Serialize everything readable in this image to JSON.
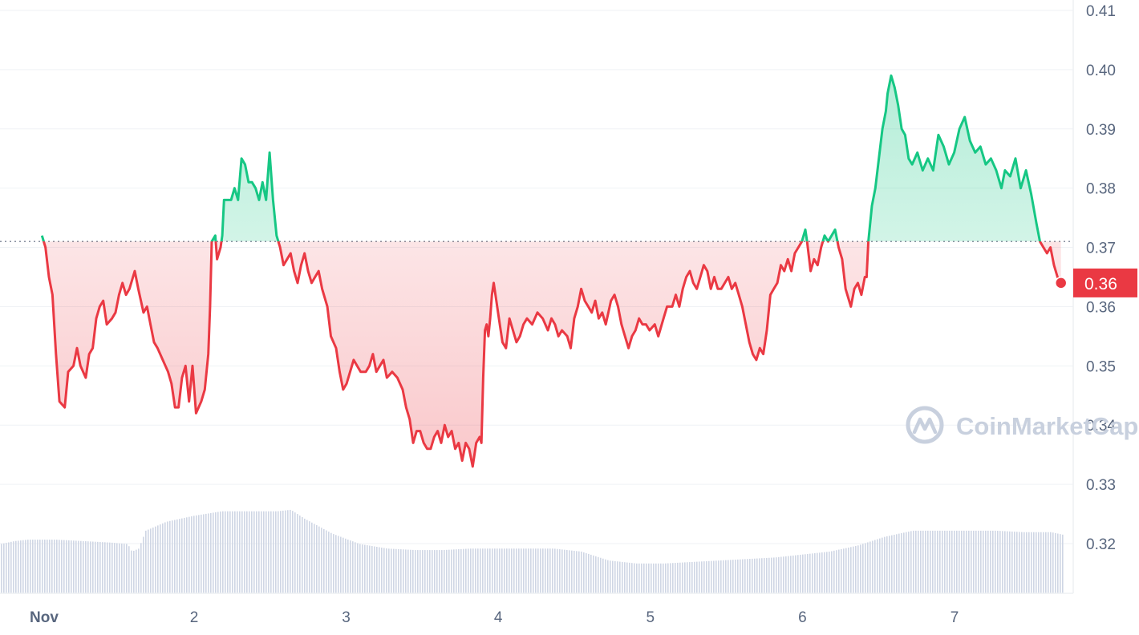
{
  "chart_data": {
    "type": "line",
    "title": "",
    "xlabel": "",
    "ylabel": "",
    "ylim": [
      0.311,
      0.412
    ],
    "xlim": [
      1.0,
      7.75
    ],
    "baseline": 0.371,
    "y_ticks": [
      "0.41",
      "0.40",
      "0.39",
      "0.38",
      "0.37",
      "0.36",
      "0.35",
      "0.34",
      "0.33",
      "0.32"
    ],
    "y_tick_values": [
      0.41,
      0.4,
      0.39,
      0.38,
      0.37,
      0.36,
      0.35,
      0.34,
      0.33,
      0.32
    ],
    "x_ticks": [
      {
        "label": "Nov",
        "value": 1.15,
        "bold": true
      },
      {
        "label": "2",
        "value": 2.0,
        "bold": false
      },
      {
        "label": "3",
        "value": 3.0,
        "bold": false
      },
      {
        "label": "4",
        "value": 4.0,
        "bold": false
      },
      {
        "label": "5",
        "value": 5.0,
        "bold": false
      },
      {
        "label": "6",
        "value": 6.0,
        "bold": false
      },
      {
        "label": "7",
        "value": 7.0,
        "bold": false
      }
    ],
    "grid": true,
    "current_price_label": "0.36",
    "up_color": "#16c784",
    "down_color": "#ea3943",
    "volume_color": "#cfd6e4",
    "price_series": [
      [
        1.0,
        0.372
      ],
      [
        1.02,
        0.37
      ],
      [
        1.04,
        0.365
      ],
      [
        1.06,
        0.362
      ],
      [
        1.08,
        0.352
      ],
      [
        1.1,
        0.344
      ],
      [
        1.13,
        0.343
      ],
      [
        1.15,
        0.349
      ],
      [
        1.18,
        0.35
      ],
      [
        1.2,
        0.353
      ],
      [
        1.22,
        0.35
      ],
      [
        1.25,
        0.348
      ],
      [
        1.27,
        0.352
      ],
      [
        1.29,
        0.353
      ],
      [
        1.31,
        0.358
      ],
      [
        1.33,
        0.36
      ],
      [
        1.35,
        0.361
      ],
      [
        1.37,
        0.357
      ],
      [
        1.4,
        0.358
      ],
      [
        1.42,
        0.359
      ],
      [
        1.44,
        0.362
      ],
      [
        1.46,
        0.364
      ],
      [
        1.48,
        0.362
      ],
      [
        1.5,
        0.363
      ],
      [
        1.53,
        0.366
      ],
      [
        1.55,
        0.363
      ],
      [
        1.58,
        0.359
      ],
      [
        1.6,
        0.36
      ],
      [
        1.62,
        0.357
      ],
      [
        1.64,
        0.354
      ],
      [
        1.66,
        0.353
      ],
      [
        1.69,
        0.351
      ],
      [
        1.72,
        0.349
      ],
      [
        1.74,
        0.347
      ],
      [
        1.76,
        0.343
      ],
      [
        1.78,
        0.343
      ],
      [
        1.8,
        0.348
      ],
      [
        1.82,
        0.35
      ],
      [
        1.84,
        0.344
      ],
      [
        1.86,
        0.35
      ],
      [
        1.88,
        0.342
      ],
      [
        1.91,
        0.344
      ],
      [
        1.93,
        0.346
      ],
      [
        1.95,
        0.352
      ],
      [
        1.96,
        0.36
      ],
      [
        1.97,
        0.371
      ],
      [
        1.99,
        0.372
      ],
      [
        2.0,
        0.368
      ],
      [
        2.02,
        0.37
      ],
      [
        2.03,
        0.372
      ],
      [
        2.04,
        0.378
      ],
      [
        2.06,
        0.378
      ],
      [
        2.08,
        0.378
      ],
      [
        2.1,
        0.38
      ],
      [
        2.12,
        0.378
      ],
      [
        2.14,
        0.385
      ],
      [
        2.16,
        0.384
      ],
      [
        2.18,
        0.381
      ],
      [
        2.2,
        0.381
      ],
      [
        2.22,
        0.38
      ],
      [
        2.24,
        0.378
      ],
      [
        2.26,
        0.381
      ],
      [
        2.28,
        0.378
      ],
      [
        2.3,
        0.386
      ],
      [
        2.32,
        0.378
      ],
      [
        2.34,
        0.372
      ],
      [
        2.36,
        0.37
      ],
      [
        2.38,
        0.367
      ],
      [
        2.4,
        0.368
      ],
      [
        2.42,
        0.369
      ],
      [
        2.44,
        0.366
      ],
      [
        2.46,
        0.364
      ],
      [
        2.48,
        0.367
      ],
      [
        2.5,
        0.369
      ],
      [
        2.52,
        0.366
      ],
      [
        2.54,
        0.364
      ],
      [
        2.56,
        0.365
      ],
      [
        2.58,
        0.366
      ],
      [
        2.6,
        0.363
      ],
      [
        2.63,
        0.36
      ],
      [
        2.65,
        0.355
      ],
      [
        2.68,
        0.353
      ],
      [
        2.7,
        0.349
      ],
      [
        2.72,
        0.346
      ],
      [
        2.74,
        0.347
      ],
      [
        2.76,
        0.349
      ],
      [
        2.78,
        0.351
      ],
      [
        2.8,
        0.35
      ],
      [
        2.82,
        0.349
      ],
      [
        2.85,
        0.349
      ],
      [
        2.87,
        0.35
      ],
      [
        2.89,
        0.352
      ],
      [
        2.91,
        0.349
      ],
      [
        2.93,
        0.35
      ],
      [
        2.95,
        0.351
      ],
      [
        2.97,
        0.348
      ],
      [
        3.0,
        0.349
      ],
      [
        3.03,
        0.348
      ],
      [
        3.06,
        0.346
      ],
      [
        3.08,
        0.343
      ],
      [
        3.1,
        0.341
      ],
      [
        3.12,
        0.337
      ],
      [
        3.14,
        0.339
      ],
      [
        3.16,
        0.339
      ],
      [
        3.18,
        0.337
      ],
      [
        3.2,
        0.336
      ],
      [
        3.22,
        0.336
      ],
      [
        3.24,
        0.338
      ],
      [
        3.26,
        0.339
      ],
      [
        3.28,
        0.337
      ],
      [
        3.3,
        0.34
      ],
      [
        3.32,
        0.338
      ],
      [
        3.34,
        0.339
      ],
      [
        3.36,
        0.336
      ],
      [
        3.38,
        0.337
      ],
      [
        3.4,
        0.334
      ],
      [
        3.42,
        0.337
      ],
      [
        3.44,
        0.336
      ],
      [
        3.46,
        0.333
      ],
      [
        3.48,
        0.337
      ],
      [
        3.5,
        0.338
      ],
      [
        3.51,
        0.337
      ],
      [
        3.52,
        0.348
      ],
      [
        3.53,
        0.356
      ],
      [
        3.54,
        0.357
      ],
      [
        3.55,
        0.355
      ],
      [
        3.56,
        0.358
      ],
      [
        3.57,
        0.362
      ],
      [
        3.58,
        0.364
      ],
      [
        3.59,
        0.362
      ],
      [
        3.61,
        0.358
      ],
      [
        3.63,
        0.354
      ],
      [
        3.65,
        0.353
      ],
      [
        3.67,
        0.358
      ],
      [
        3.69,
        0.356
      ],
      [
        3.71,
        0.354
      ],
      [
        3.73,
        0.355
      ],
      [
        3.75,
        0.357
      ],
      [
        3.77,
        0.358
      ],
      [
        3.8,
        0.357
      ],
      [
        3.83,
        0.359
      ],
      [
        3.86,
        0.358
      ],
      [
        3.89,
        0.356
      ],
      [
        3.91,
        0.358
      ],
      [
        3.93,
        0.357
      ],
      [
        3.95,
        0.355
      ],
      [
        3.97,
        0.356
      ],
      [
        4.0,
        0.355
      ],
      [
        4.02,
        0.353
      ],
      [
        4.04,
        0.358
      ],
      [
        4.06,
        0.36
      ],
      [
        4.08,
        0.363
      ],
      [
        4.1,
        0.361
      ],
      [
        4.12,
        0.36
      ],
      [
        4.14,
        0.359
      ],
      [
        4.16,
        0.361
      ],
      [
        4.18,
        0.358
      ],
      [
        4.2,
        0.359
      ],
      [
        4.22,
        0.357
      ],
      [
        4.25,
        0.361
      ],
      [
        4.27,
        0.362
      ],
      [
        4.29,
        0.36
      ],
      [
        4.31,
        0.357
      ],
      [
        4.33,
        0.355
      ],
      [
        4.35,
        0.353
      ],
      [
        4.37,
        0.355
      ],
      [
        4.39,
        0.356
      ],
      [
        4.41,
        0.358
      ],
      [
        4.43,
        0.357
      ],
      [
        4.45,
        0.357
      ],
      [
        4.47,
        0.356
      ],
      [
        4.5,
        0.357
      ],
      [
        4.52,
        0.355
      ],
      [
        4.55,
        0.358
      ],
      [
        4.57,
        0.36
      ],
      [
        4.6,
        0.36
      ],
      [
        4.62,
        0.362
      ],
      [
        4.64,
        0.36
      ],
      [
        4.66,
        0.363
      ],
      [
        4.68,
        0.365
      ],
      [
        4.7,
        0.366
      ],
      [
        4.72,
        0.364
      ],
      [
        4.74,
        0.363
      ],
      [
        4.76,
        0.365
      ],
      [
        4.78,
        0.367
      ],
      [
        4.8,
        0.366
      ],
      [
        4.82,
        0.363
      ],
      [
        4.84,
        0.365
      ],
      [
        4.86,
        0.363
      ],
      [
        4.88,
        0.363
      ],
      [
        4.9,
        0.364
      ],
      [
        4.92,
        0.365
      ],
      [
        4.94,
        0.363
      ],
      [
        4.96,
        0.364
      ],
      [
        4.98,
        0.362
      ],
      [
        5.0,
        0.36
      ],
      [
        5.02,
        0.357
      ],
      [
        5.04,
        0.354
      ],
      [
        5.06,
        0.352
      ],
      [
        5.08,
        0.351
      ],
      [
        5.1,
        0.353
      ],
      [
        5.12,
        0.352
      ],
      [
        5.14,
        0.356
      ],
      [
        5.16,
        0.362
      ],
      [
        5.18,
        0.363
      ],
      [
        5.2,
        0.364
      ],
      [
        5.22,
        0.367
      ],
      [
        5.24,
        0.366
      ],
      [
        5.26,
        0.368
      ],
      [
        5.28,
        0.366
      ],
      [
        5.3,
        0.369
      ],
      [
        5.32,
        0.37
      ],
      [
        5.34,
        0.371
      ],
      [
        5.36,
        0.373
      ],
      [
        5.37,
        0.371
      ],
      [
        5.39,
        0.366
      ],
      [
        5.41,
        0.368
      ],
      [
        5.43,
        0.367
      ],
      [
        5.45,
        0.37
      ],
      [
        5.47,
        0.372
      ],
      [
        5.49,
        0.371
      ],
      [
        5.51,
        0.372
      ],
      [
        5.53,
        0.373
      ],
      [
        5.55,
        0.37
      ],
      [
        5.57,
        0.368
      ],
      [
        5.59,
        0.363
      ],
      [
        5.62,
        0.36
      ],
      [
        5.64,
        0.363
      ],
      [
        5.66,
        0.364
      ],
      [
        5.68,
        0.362
      ],
      [
        5.7,
        0.365
      ],
      [
        5.71,
        0.365
      ],
      [
        5.72,
        0.371
      ],
      [
        5.74,
        0.377
      ],
      [
        5.76,
        0.38
      ],
      [
        5.78,
        0.385
      ],
      [
        5.8,
        0.39
      ],
      [
        5.82,
        0.393
      ],
      [
        5.83,
        0.396
      ],
      [
        5.85,
        0.399
      ],
      [
        5.87,
        0.397
      ],
      [
        5.89,
        0.394
      ],
      [
        5.91,
        0.39
      ],
      [
        5.93,
        0.389
      ],
      [
        5.95,
        0.385
      ],
      [
        5.97,
        0.384
      ],
      [
        6.0,
        0.386
      ],
      [
        6.03,
        0.383
      ],
      [
        6.06,
        0.385
      ],
      [
        6.09,
        0.383
      ],
      [
        6.12,
        0.389
      ],
      [
        6.15,
        0.387
      ],
      [
        6.18,
        0.384
      ],
      [
        6.21,
        0.386
      ],
      [
        6.24,
        0.39
      ],
      [
        6.27,
        0.392
      ],
      [
        6.3,
        0.388
      ],
      [
        6.33,
        0.386
      ],
      [
        6.36,
        0.387
      ],
      [
        6.39,
        0.384
      ],
      [
        6.42,
        0.385
      ],
      [
        6.45,
        0.383
      ],
      [
        6.48,
        0.38
      ],
      [
        6.5,
        0.383
      ],
      [
        6.53,
        0.382
      ],
      [
        6.56,
        0.385
      ],
      [
        6.59,
        0.38
      ],
      [
        6.62,
        0.383
      ],
      [
        6.65,
        0.379
      ],
      [
        6.68,
        0.374
      ],
      [
        6.7,
        0.371
      ],
      [
        6.72,
        0.37
      ],
      [
        6.74,
        0.369
      ],
      [
        6.76,
        0.37
      ],
      [
        6.78,
        0.367
      ],
      [
        6.8,
        0.365
      ],
      [
        6.82,
        0.364
      ]
    ],
    "volume": [
      [
        1.0,
        0.33
      ],
      [
        1.1,
        0.35
      ],
      [
        1.2,
        0.36
      ],
      [
        1.4,
        0.36
      ],
      [
        1.6,
        0.35
      ],
      [
        1.8,
        0.34
      ],
      [
        1.92,
        0.33
      ],
      [
        1.95,
        0.28
      ],
      [
        2.0,
        0.3
      ],
      [
        2.05,
        0.42
      ],
      [
        2.2,
        0.48
      ],
      [
        2.4,
        0.52
      ],
      [
        2.6,
        0.55
      ],
      [
        2.8,
        0.55
      ],
      [
        3.0,
        0.55
      ],
      [
        3.1,
        0.56
      ],
      [
        3.2,
        0.5
      ],
      [
        3.4,
        0.4
      ],
      [
        3.6,
        0.33
      ],
      [
        3.8,
        0.3
      ],
      [
        4.0,
        0.29
      ],
      [
        4.2,
        0.29
      ],
      [
        4.4,
        0.3
      ],
      [
        4.6,
        0.3
      ],
      [
        4.8,
        0.3
      ],
      [
        5.0,
        0.3
      ],
      [
        5.2,
        0.28
      ],
      [
        5.4,
        0.22
      ],
      [
        5.6,
        0.2
      ],
      [
        5.8,
        0.2
      ],
      [
        6.0,
        0.21
      ],
      [
        6.2,
        0.22
      ],
      [
        6.4,
        0.23
      ],
      [
        6.6,
        0.24
      ],
      [
        6.8,
        0.26
      ],
      [
        7.0,
        0.28
      ],
      [
        7.2,
        0.32
      ],
      [
        7.4,
        0.38
      ],
      [
        7.6,
        0.42
      ],
      [
        7.8,
        0.42
      ],
      [
        8.0,
        0.42
      ],
      [
        8.2,
        0.42
      ],
      [
        8.4,
        0.41
      ],
      [
        8.6,
        0.41
      ],
      [
        8.7,
        0.39
      ]
    ]
  },
  "watermark": {
    "logo_icon": "coinmarketcap-logo-icon",
    "text": "CoinMarketCap"
  }
}
